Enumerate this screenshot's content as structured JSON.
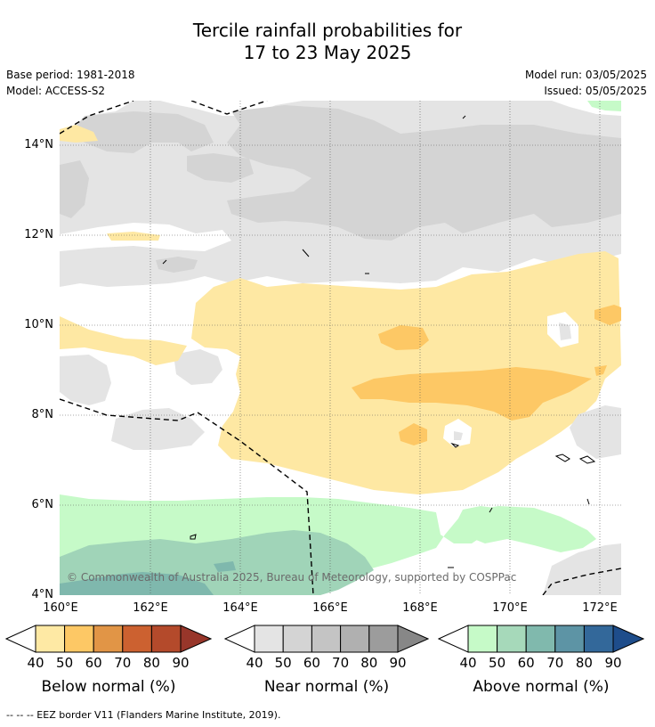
{
  "title": {
    "line1": "Tercile rainfall probabilities for",
    "line2": "17 to 23 May 2025"
  },
  "meta": {
    "base_period": "Base period: 1981-2018",
    "model": "Model: ACCESS-S2",
    "model_run": "Model run: 03/05/2025",
    "issued": "Issued: 05/05/2025"
  },
  "map": {
    "lat_labels": [
      "14°N",
      "12°N",
      "10°N",
      "8°N",
      "6°N",
      "4°N"
    ],
    "lon_labels": [
      "160°E",
      "162°E",
      "164°E",
      "166°E",
      "168°E",
      "170°E",
      "172°E"
    ],
    "copyright": "© Commonwealth of Australia 2025, Bureau of Meteorology, supported by COSPPac",
    "colors": {
      "background_land_none": "#ffffff",
      "near_40": "#e4e4e4",
      "near_50": "#d4d4d4",
      "below_40": "#fee8a3",
      "below_50": "#fdc865",
      "above_40": "#c6fac8",
      "above_50": "#a0d4b8",
      "above_60": "#7fb8ad"
    }
  },
  "colorbars": [
    {
      "caption": "Below normal (%)",
      "ticks": [
        "40",
        "50",
        "60",
        "70",
        "80",
        "90"
      ],
      "colors": [
        "#fee9a4",
        "#fdc865",
        "#e19546",
        "#cc6130",
        "#b44a2b",
        "#98362a"
      ],
      "low_color": "#ffffff"
    },
    {
      "caption": "Near normal (%)",
      "ticks": [
        "40",
        "50",
        "60",
        "70",
        "80",
        "90"
      ],
      "colors": [
        "#e4e4e4",
        "#d4d4d4",
        "#c4c4c4",
        "#b0b0b0",
        "#9c9c9c",
        "#878787"
      ],
      "low_color": "#ffffff"
    },
    {
      "caption": "Above normal (%)",
      "ticks": [
        "40",
        "50",
        "60",
        "70",
        "80",
        "90"
      ],
      "colors": [
        "#c6fac8",
        "#a6d9ba",
        "#80b9ad",
        "#5d94a5",
        "#33689a",
        "#1e4d8b"
      ],
      "low_color": "#ffffff"
    }
  ],
  "footnote": "--  --  -- EEZ border V11 (Flanders Marine Institute, 2019)."
}
